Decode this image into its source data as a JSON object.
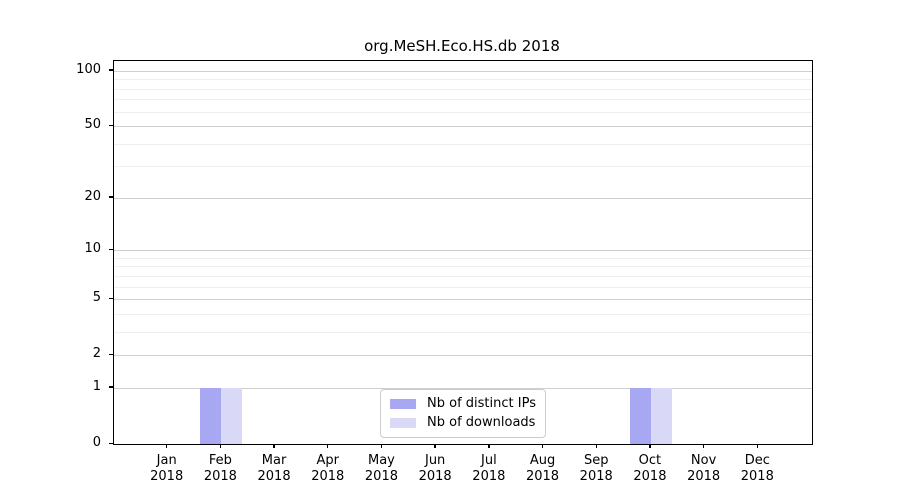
{
  "chart_data": {
    "type": "bar",
    "title": "org.MeSH.Eco.HS.db 2018",
    "x": {
      "categories": [
        "Jan",
        "Feb",
        "Mar",
        "Apr",
        "May",
        "Jun",
        "Jul",
        "Aug",
        "Sep",
        "Oct",
        "Nov",
        "Dec"
      ],
      "year": "2018"
    },
    "series": [
      {
        "name": "Nb of distinct IPs",
        "color": "#a8a8f2",
        "values": [
          0,
          1,
          0,
          0,
          0,
          0,
          0,
          0,
          0,
          1,
          0,
          0
        ]
      },
      {
        "name": "Nb of downloads",
        "color": "#d9d9f7",
        "values": [
          0,
          1,
          0,
          0,
          0,
          0,
          0,
          0,
          0,
          1,
          0,
          0
        ]
      }
    ],
    "yscale": "log1p",
    "ylim": [
      0,
      100
    ],
    "y_major_ticks": [
      100,
      50,
      20,
      10,
      5,
      2,
      1,
      0
    ],
    "y_minor_ticks": [
      90,
      80,
      70,
      60,
      40,
      30,
      9,
      8,
      7,
      6,
      4,
      3
    ],
    "grid": true,
    "legend_position": "lower center"
  },
  "colors": {
    "background": "#ffffff",
    "spine": "#000000",
    "major_grid": "#cfcfcf",
    "minor_grid": "#efefef",
    "legend_border": "#cccccc",
    "bar_distinct_ips": "#a8a8f2",
    "bar_downloads": "#d9d9f7"
  }
}
